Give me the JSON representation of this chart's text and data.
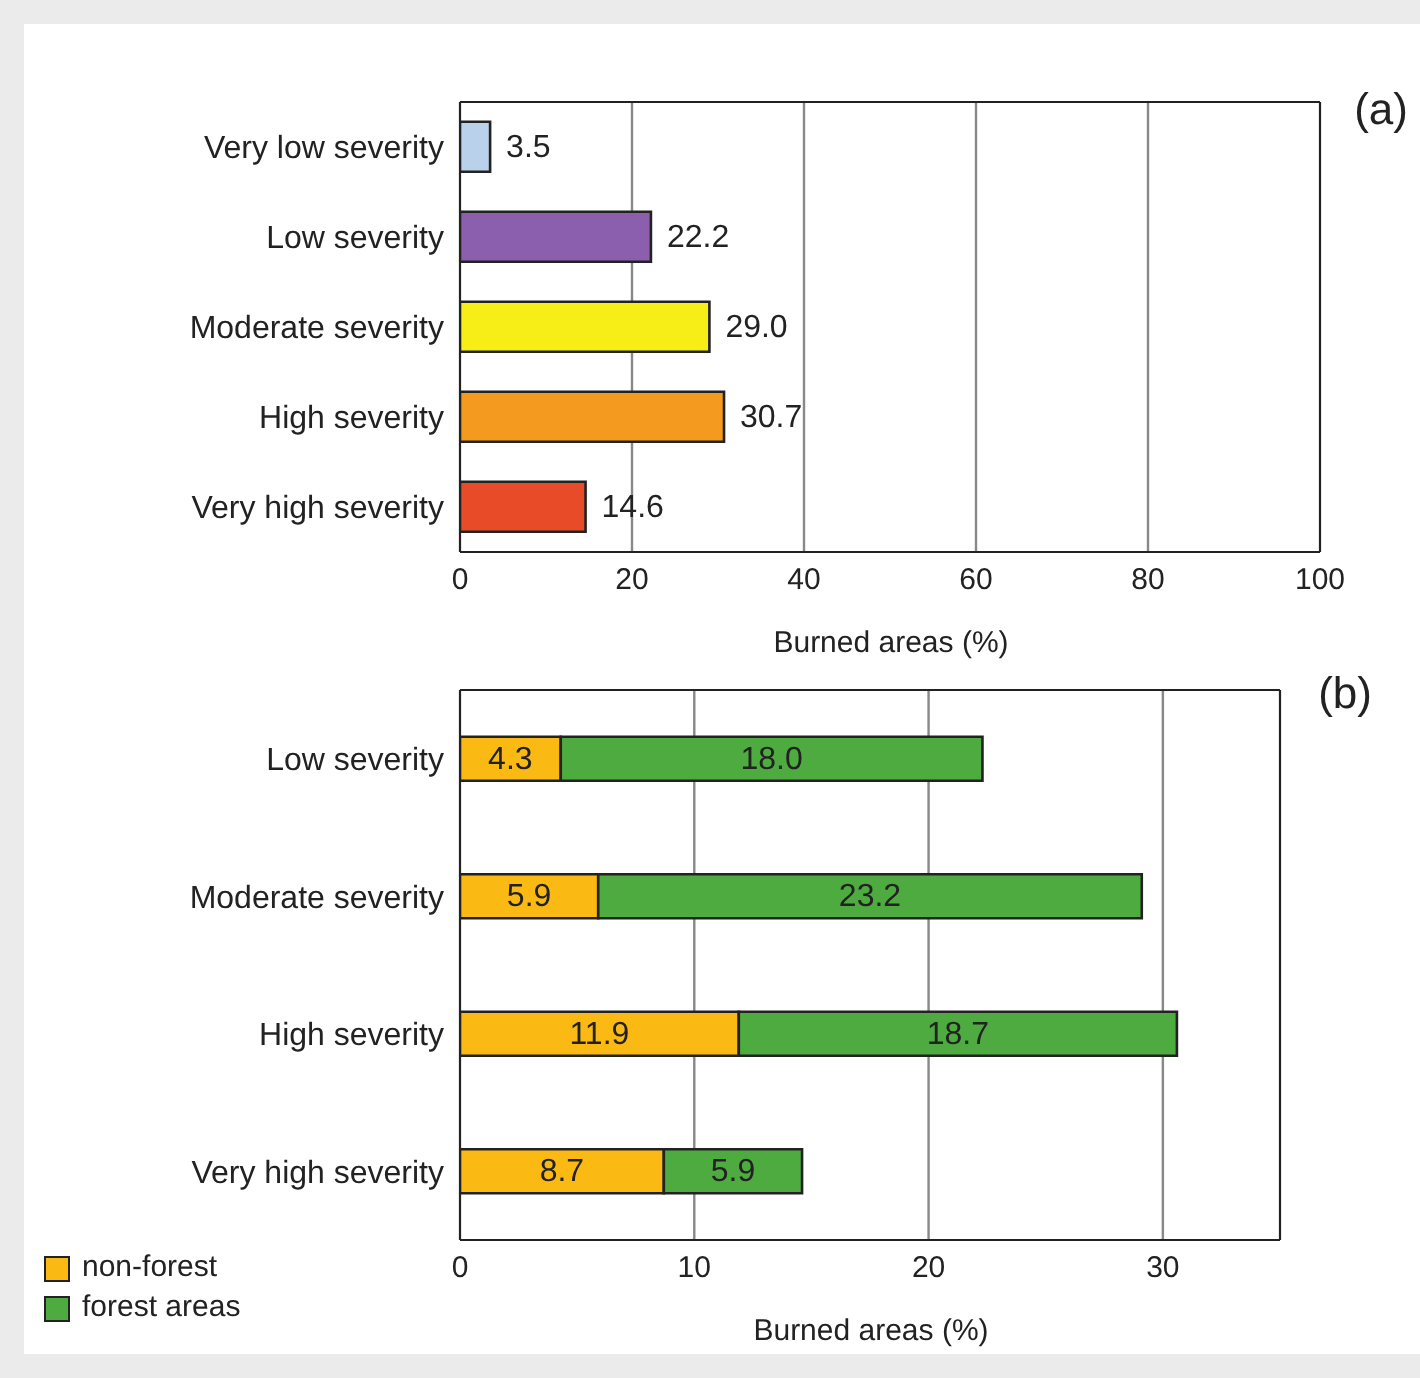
{
  "chart_data": [
    {
      "type": "bar",
      "orientation": "horizontal",
      "categories": [
        "Very low severity",
        "Low severity",
        "Moderate severity",
        "High severity",
        "Very high severity"
      ],
      "values": [
        3.5,
        22.2,
        29.0,
        30.7,
        14.6
      ],
      "colors": [
        "#b9d1eb",
        "#8b5fae",
        "#f7ee17",
        "#f39a1f",
        "#e84b28"
      ],
      "value_labels": [
        "3.5",
        "22.2",
        "29.0",
        "30.7",
        "14.6"
      ],
      "xlim": [
        0,
        100
      ],
      "xticks": [
        0,
        20,
        40,
        60,
        80,
        100
      ],
      "xlabel": "Burned areas (%)",
      "grid": "x",
      "annotations": [
        "(a)"
      ]
    },
    {
      "type": "bar",
      "orientation": "horizontal",
      "stacked": true,
      "categories": [
        "Low severity",
        "Moderate severity",
        "High severity",
        "Very high severity"
      ],
      "series": [
        {
          "name": "non-forest",
          "color": "#fbb913",
          "values": [
            4.3,
            5.9,
            11.9,
            8.7
          ],
          "value_labels": [
            "4.3",
            "5.9",
            "11.9",
            "8.7"
          ]
        },
        {
          "name": "forest areas",
          "color": "#4dab3f",
          "values": [
            18.0,
            23.2,
            18.7,
            5.9
          ],
          "value_labels": [
            "18.0",
            "23.2",
            "18.7",
            "5.9"
          ]
        }
      ],
      "xlim": [
        0,
        35
      ],
      "xticks": [
        0,
        10,
        20,
        30
      ],
      "xlabel": "Burned areas (%)",
      "grid": "x",
      "legend": "bottom left",
      "annotations": [
        "(b)"
      ]
    }
  ]
}
